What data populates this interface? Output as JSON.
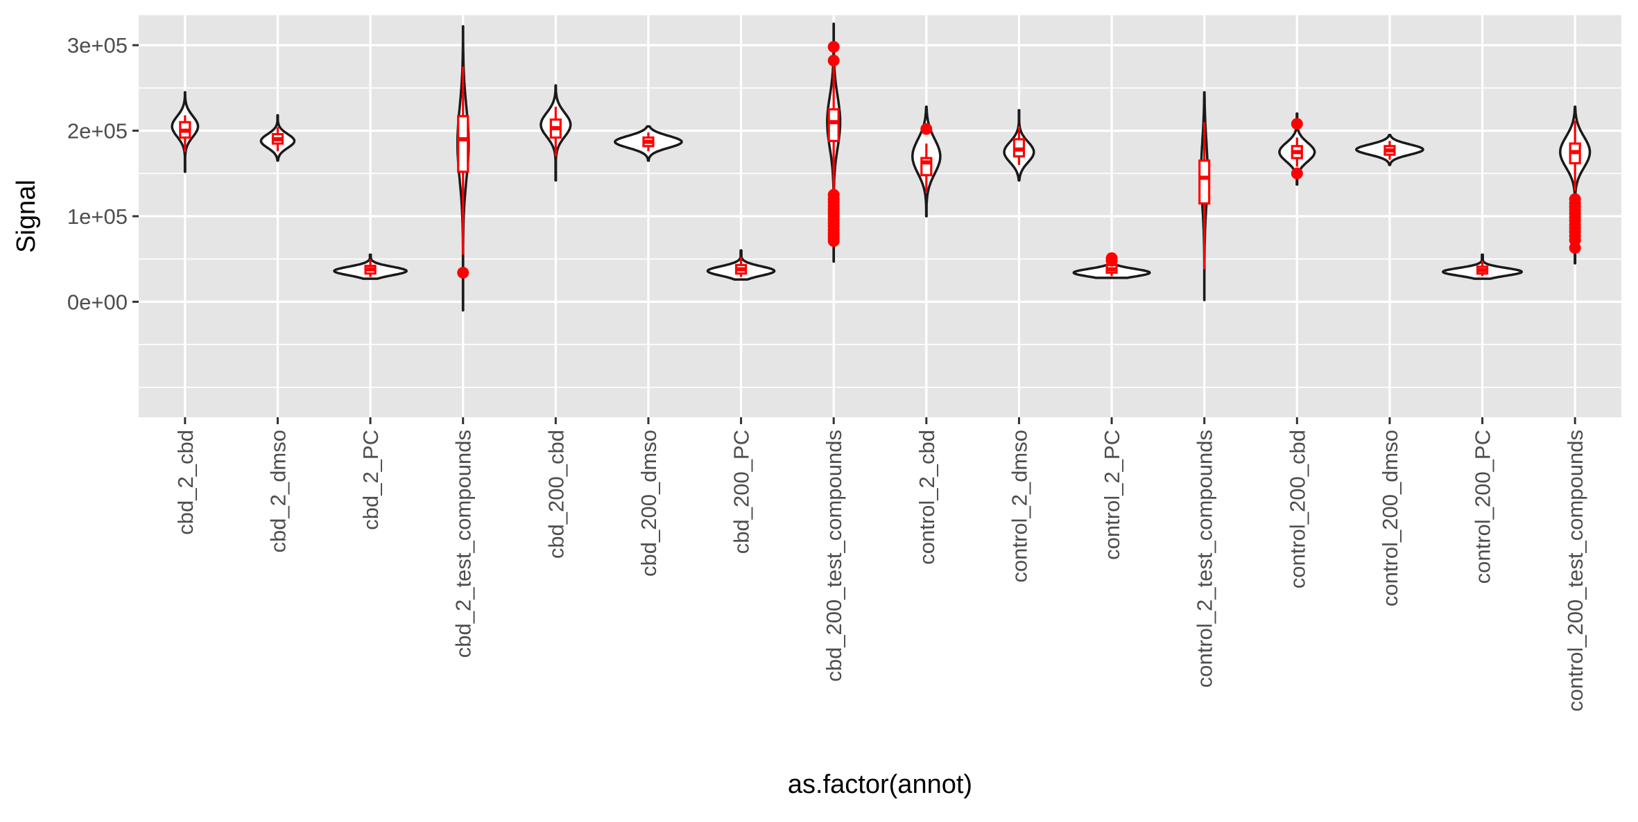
{
  "chart_data": {
    "type": "violin",
    "xlabel": "as.factor(annot)",
    "ylabel": "Signal",
    "ylim": [
      -135000,
      335000
    ],
    "y_ticks": [
      0,
      100000,
      200000,
      300000
    ],
    "y_tick_labels": [
      "0e+00",
      "1e+05",
      "2e+05",
      "3e+05"
    ],
    "grid": true,
    "colors": {
      "panel": "#e5e5e5",
      "grid": "#ffffff",
      "violin_stroke": "#1a1a1a",
      "violin_fill": "#ffffff",
      "box": "#ff0000",
      "axis_text": "#4d4d4d",
      "title_text": "#000000"
    },
    "categories": [
      "cbd_2_cbd",
      "cbd_2_dmso",
      "cbd_2_PC",
      "cbd_2_test_compounds",
      "cbd_200_cbd",
      "cbd_200_dmso",
      "cbd_200_PC",
      "cbd_200_test_compounds",
      "control_2_cbd",
      "control_2_dmso",
      "control_2_PC",
      "control_2_test_compounds",
      "control_200_cbd",
      "control_200_dmso",
      "control_200_PC",
      "control_200_test_compounds"
    ],
    "groups": [
      {
        "name": "cbd_2_cbd",
        "violin": {
          "min": 152000,
          "max": 245000,
          "mode": 205000,
          "maxw": 0.28,
          "sd": 12000
        },
        "box": {
          "q1": 192000,
          "median": 200000,
          "q3": 210000,
          "lo": 175000,
          "hi": 218000
        },
        "outliers": []
      },
      {
        "name": "cbd_2_dmso",
        "violin": {
          "min": 165000,
          "max": 218000,
          "mode": 188000,
          "maxw": 0.36,
          "sd": 8000
        },
        "box": {
          "q1": 185000,
          "median": 190000,
          "q3": 196000,
          "lo": 176000,
          "hi": 204000
        },
        "outliers": []
      },
      {
        "name": "cbd_2_PC",
        "violin": {
          "min": 27000,
          "max": 55000,
          "mode": 36000,
          "maxw": 0.78,
          "sd": 5000
        },
        "box": {
          "q1": 33000,
          "median": 38000,
          "q3": 42000,
          "lo": 29000,
          "hi": 50000
        },
        "outliers": []
      },
      {
        "name": "cbd_2_test_compounds",
        "violin": {
          "min": -10000,
          "max": 322000,
          "mode": 185000,
          "maxw": 0.12,
          "sd": 42000
        },
        "box": {
          "q1": 152000,
          "median": 190000,
          "q3": 217000,
          "lo": 55000,
          "hi": 275000
        },
        "outliers": [
          34000
        ]
      },
      {
        "name": "cbd_200_cbd",
        "violin": {
          "min": 142000,
          "max": 253000,
          "mode": 207000,
          "maxw": 0.32,
          "sd": 14000
        },
        "box": {
          "q1": 192000,
          "median": 203000,
          "q3": 213000,
          "lo": 170000,
          "hi": 228000
        },
        "outliers": []
      },
      {
        "name": "cbd_200_dmso",
        "violin": {
          "min": 165000,
          "max": 205000,
          "mode": 187000,
          "maxw": 0.72,
          "sd": 7000
        },
        "box": {
          "q1": 182000,
          "median": 187000,
          "q3": 192000,
          "lo": 176000,
          "hi": 198000
        },
        "outliers": []
      },
      {
        "name": "cbd_200_PC",
        "violin": {
          "min": 26000,
          "max": 60000,
          "mode": 36000,
          "maxw": 0.72,
          "sd": 5500
        },
        "box": {
          "q1": 33000,
          "median": 38000,
          "q3": 43000,
          "lo": 29000,
          "hi": 52000
        },
        "outliers": []
      },
      {
        "name": "cbd_200_test_compounds",
        "violin": {
          "min": 47000,
          "max": 325000,
          "mode": 210000,
          "maxw": 0.14,
          "sd": 30000
        },
        "box": {
          "q1": 188000,
          "median": 210000,
          "q3": 225000,
          "lo": 130000,
          "hi": 280000
        },
        "outliers": [
          298000,
          282000,
          125000,
          120000,
          116000,
          112000,
          108000,
          104000,
          100000,
          96000,
          92000,
          88000,
          84000,
          80000,
          77000,
          74000,
          71000
        ]
      },
      {
        "name": "control_2_cbd",
        "violin": {
          "min": 100000,
          "max": 228000,
          "mode": 170000,
          "maxw": 0.3,
          "sd": 20000
        },
        "box": {
          "q1": 148000,
          "median": 163000,
          "q3": 168000,
          "lo": 128000,
          "hi": 185000
        },
        "outliers": [
          202000
        ]
      },
      {
        "name": "control_2_dmso",
        "violin": {
          "min": 142000,
          "max": 224000,
          "mode": 175000,
          "maxw": 0.32,
          "sd": 12000
        },
        "box": {
          "q1": 170000,
          "median": 178000,
          "q3": 190000,
          "lo": 160000,
          "hi": 205000
        },
        "outliers": []
      },
      {
        "name": "control_2_PC",
        "violin": {
          "min": 28000,
          "max": 55000,
          "mode": 34000,
          "maxw": 0.82,
          "sd": 4500
        },
        "box": {
          "q1": 34000,
          "median": 38000,
          "q3": 43000,
          "lo": 30000,
          "hi": 48000
        },
        "outliers": [
          51000,
          48000
        ]
      },
      {
        "name": "control_2_test_compounds",
        "violin": {
          "min": 2000,
          "max": 245000,
          "mode": 150000,
          "maxw": 0.07,
          "sd": 38000
        },
        "box": {
          "q1": 115000,
          "median": 145000,
          "q3": 165000,
          "lo": 38000,
          "hi": 210000
        },
        "outliers": []
      },
      {
        "name": "control_200_cbd",
        "violin": {
          "min": 137000,
          "max": 220000,
          "mode": 175000,
          "maxw": 0.38,
          "sd": 11000
        },
        "box": {
          "q1": 168000,
          "median": 175000,
          "q3": 182000,
          "lo": 158000,
          "hi": 192000
        },
        "outliers": [
          208000,
          150000
        ]
      },
      {
        "name": "control_200_dmso",
        "violin": {
          "min": 160000,
          "max": 195000,
          "mode": 178000,
          "maxw": 0.72,
          "sd": 6000
        },
        "box": {
          "q1": 172000,
          "median": 177000,
          "q3": 182000,
          "lo": 166000,
          "hi": 188000
        },
        "outliers": []
      },
      {
        "name": "control_200_PC",
        "violin": {
          "min": 27000,
          "max": 55000,
          "mode": 35000,
          "maxw": 0.85,
          "sd": 4500
        },
        "box": {
          "q1": 33000,
          "median": 37000,
          "q3": 41000,
          "lo": 30000,
          "hi": 48000
        },
        "outliers": []
      },
      {
        "name": "control_200_test_compounds",
        "violin": {
          "min": 45000,
          "max": 228000,
          "mode": 175000,
          "maxw": 0.32,
          "sd": 18000
        },
        "box": {
          "q1": 162000,
          "median": 175000,
          "q3": 185000,
          "lo": 130000,
          "hi": 212000
        },
        "outliers": [
          120000,
          115000,
          111000,
          107000,
          103000,
          99000,
          95000,
          90000,
          86000,
          82000,
          77000,
          72000,
          63000
        ]
      }
    ]
  }
}
